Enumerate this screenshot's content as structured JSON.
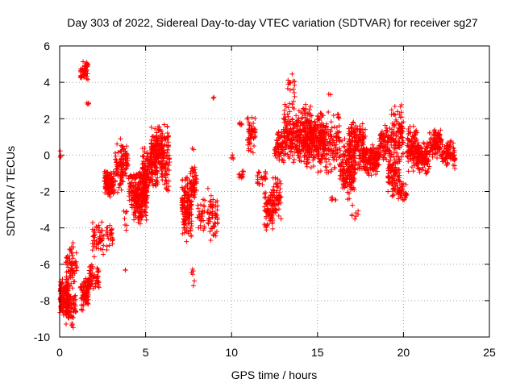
{
  "chart_data": {
    "type": "scatter",
    "title": "Day 303 of 2022, Sidereal Day-to-day VTEC variation (SDTVAR) for receiver sg27",
    "xlabel": "GPS time / hours",
    "ylabel": "SDTVAR / TECUs",
    "xlim": [
      0,
      25
    ],
    "ylim": [
      -10,
      6
    ],
    "xticks": [
      0,
      5,
      10,
      15,
      20,
      25
    ],
    "yticks": [
      -10,
      -8,
      -6,
      -4,
      -2,
      0,
      2,
      4,
      6
    ],
    "grid": true,
    "marker": "+",
    "marker_color": "#ff0000",
    "series": [
      {
        "name": "sg27",
        "clusters": [
          {
            "x": [
              0.0,
              0.5
            ],
            "y": [
              -8.8,
              -6.8
            ],
            "n": 140
          },
          {
            "x": [
              0.0,
              0.08
            ],
            "y": [
              -0.3,
              0.3
            ],
            "n": 4
          },
          {
            "x": [
              0.35,
              0.95
            ],
            "y": [
              -9.6,
              -7.0
            ],
            "n": 80
          },
          {
            "x": [
              0.35,
              1.0
            ],
            "y": [
              -7.2,
              -4.8
            ],
            "n": 70
          },
          {
            "x": [
              1.2,
              1.7
            ],
            "y": [
              -8.6,
              -6.6
            ],
            "n": 80
          },
          {
            "x": [
              1.2,
              1.65
            ],
            "y": [
              4.0,
              5.3
            ],
            "n": 50
          },
          {
            "x": [
              1.55,
              1.75
            ],
            "y": [
              2.5,
              3.5
            ],
            "n": 4
          },
          {
            "x": [
              1.7,
              2.3
            ],
            "y": [
              -7.5,
              -5.8
            ],
            "n": 60
          },
          {
            "x": [
              1.9,
              2.6
            ],
            "y": [
              -5.8,
              -3.4
            ],
            "n": 50
          },
          {
            "x": [
              2.6,
              3.2
            ],
            "y": [
              -2.4,
              -0.8
            ],
            "n": 110
          },
          {
            "x": [
              2.7,
              3.1
            ],
            "y": [
              -5.4,
              -3.6
            ],
            "n": 25
          },
          {
            "x": [
              3.2,
              3.7
            ],
            "y": [
              -2.2,
              1.0
            ],
            "n": 70
          },
          {
            "x": [
              3.6,
              4.0
            ],
            "y": [
              -1.2,
              0.7
            ],
            "n": 40
          },
          {
            "x": [
              3.7,
              3.9
            ],
            "y": [
              -4.2,
              -2.7
            ],
            "n": 8
          },
          {
            "x": [
              3.75,
              3.85
            ],
            "y": [
              -6.4,
              -6.2
            ],
            "n": 2
          },
          {
            "x": [
              4.0,
              4.5
            ],
            "y": [
              -3.0,
              -0.8
            ],
            "n": 60
          },
          {
            "x": [
              4.3,
              5.1
            ],
            "y": [
              -3.9,
              -0.7
            ],
            "n": 210
          },
          {
            "x": [
              4.8,
              5.7
            ],
            "y": [
              -2.2,
              0.5
            ],
            "n": 150
          },
          {
            "x": [
              5.3,
              6.0
            ],
            "y": [
              -0.8,
              1.7
            ],
            "n": 120
          },
          {
            "x": [
              5.9,
              6.4
            ],
            "y": [
              -2.5,
              1.9
            ],
            "n": 100
          },
          {
            "x": [
              7.1,
              7.7
            ],
            "y": [
              -4.8,
              -1.0
            ],
            "n": 150
          },
          {
            "x": [
              7.6,
              8.0
            ],
            "y": [
              -2.5,
              -0.5
            ],
            "n": 50
          },
          {
            "x": [
              7.65,
              7.85
            ],
            "y": [
              -7.6,
              -5.5
            ],
            "n": 6
          },
          {
            "x": [
              7.65,
              7.8
            ],
            "y": [
              0.2,
              0.4
            ],
            "n": 2
          },
          {
            "x": [
              8.0,
              8.5
            ],
            "y": [
              -4.2,
              -2.3
            ],
            "n": 30
          },
          {
            "x": [
              8.6,
              9.2
            ],
            "y": [
              -4.8,
              -1.8
            ],
            "n": 60
          },
          {
            "x": [
              8.9,
              9.05
            ],
            "y": [
              3.1,
              3.3
            ],
            "n": 2
          },
          {
            "x": [
              9.9,
              10.1
            ],
            "y": [
              -0.3,
              0.1
            ],
            "n": 4
          },
          {
            "x": [
              10.4,
              10.7
            ],
            "y": [
              -1.3,
              -0.6
            ],
            "n": 12
          },
          {
            "x": [
              10.4,
              10.6
            ],
            "y": [
              1.5,
              1.9
            ],
            "n": 6
          },
          {
            "x": [
              10.9,
              11.4
            ],
            "y": [
              -0.2,
              2.3
            ],
            "n": 50
          },
          {
            "x": [
              11.9,
              12.4
            ],
            "y": [
              -4.2,
              -1.8
            ],
            "n": 70
          },
          {
            "x": [
              11.5,
              12.0
            ],
            "y": [
              -1.7,
              -0.8
            ],
            "n": 25
          },
          {
            "x": [
              12.4,
              12.9
            ],
            "y": [
              -3.8,
              -1.0
            ],
            "n": 60
          },
          {
            "x": [
              12.5,
              13.0
            ],
            "y": [
              -0.5,
              1.5
            ],
            "n": 60
          },
          {
            "x": [
              13.0,
              14.8
            ],
            "y": [
              -0.6,
              3.0
            ],
            "n": 320
          },
          {
            "x": [
              13.2,
              13.7
            ],
            "y": [
              3.0,
              4.8
            ],
            "n": 15
          },
          {
            "x": [
              14.2,
              15.4
            ],
            "y": [
              -0.8,
              2.3
            ],
            "n": 200
          },
          {
            "x": [
              15.0,
              16.3
            ],
            "y": [
              -1.2,
              2.6
            ],
            "n": 150
          },
          {
            "x": [
              15.8,
              16.1
            ],
            "y": [
              -2.7,
              -2.2
            ],
            "n": 6
          },
          {
            "x": [
              15.6,
              15.8
            ],
            "y": [
              3.3,
              3.4
            ],
            "n": 2
          },
          {
            "x": [
              16.3,
              17.2
            ],
            "y": [
              -2.6,
              1.0
            ],
            "n": 160
          },
          {
            "x": [
              16.8,
              17.8
            ],
            "y": [
              -1.0,
              2.0
            ],
            "n": 160
          },
          {
            "x": [
              17.0,
              17.4
            ],
            "y": [
              -3.7,
              -2.7
            ],
            "n": 8
          },
          {
            "x": [
              17.6,
              18.6
            ],
            "y": [
              -1.2,
              0.8
            ],
            "n": 150
          },
          {
            "x": [
              18.6,
              19.3
            ],
            "y": [
              -0.5,
              2.0
            ],
            "n": 80
          },
          {
            "x": [
              19.1,
              19.8
            ],
            "y": [
              -2.3,
              0.0
            ],
            "n": 100
          },
          {
            "x": [
              19.3,
              20.0
            ],
            "y": [
              -0.5,
              3.0
            ],
            "n": 100
          },
          {
            "x": [
              19.7,
              20.2
            ],
            "y": [
              -2.7,
              -1.5
            ],
            "n": 40
          },
          {
            "x": [
              20.2,
              20.9
            ],
            "y": [
              -1.0,
              1.8
            ],
            "n": 120
          },
          {
            "x": [
              20.8,
              21.5
            ],
            "y": [
              -1.1,
              0.9
            ],
            "n": 100
          },
          {
            "x": [
              21.5,
              22.2
            ],
            "y": [
              -0.2,
              1.5
            ],
            "n": 100
          },
          {
            "x": [
              22.2,
              23.0
            ],
            "y": [
              -0.8,
              1.0
            ],
            "n": 90
          }
        ]
      }
    ]
  }
}
